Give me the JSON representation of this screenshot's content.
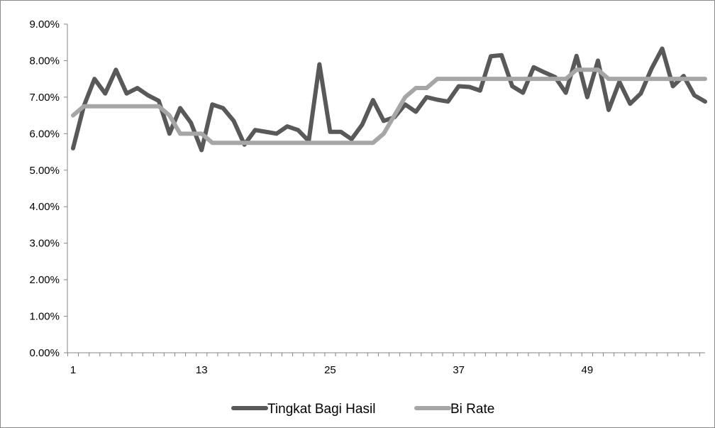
{
  "chart_data": {
    "type": "line",
    "x": [
      1,
      2,
      3,
      4,
      5,
      6,
      7,
      8,
      9,
      10,
      11,
      12,
      13,
      14,
      15,
      16,
      17,
      18,
      19,
      20,
      21,
      22,
      23,
      24,
      25,
      26,
      27,
      28,
      29,
      30,
      31,
      32,
      33,
      34,
      35,
      36,
      37,
      38,
      39,
      40,
      41,
      42,
      43,
      44,
      45,
      46,
      47,
      48,
      49,
      50,
      51,
      52,
      53,
      54,
      55,
      56,
      57,
      58,
      59,
      60
    ],
    "x_ticks": [
      1,
      13,
      25,
      37,
      49
    ],
    "x_tick_labels": [
      "1",
      "13",
      "25",
      "37",
      "49"
    ],
    "ylim": [
      0,
      9
    ],
    "y_ticks": [
      0,
      1,
      2,
      3,
      4,
      5,
      6,
      7,
      8,
      9
    ],
    "y_tick_labels": [
      "0.00%",
      "1.00%",
      "2.00%",
      "3.00%",
      "4.00%",
      "5.00%",
      "6.00%",
      "7.00%",
      "8.00%",
      "9.00%"
    ],
    "y_unit": "percent",
    "grid": false,
    "legend_position": "bottom",
    "series": [
      {
        "name": "Tingkat Bagi Hasil",
        "color": "#595959",
        "values": [
          5.6,
          6.75,
          7.5,
          7.1,
          7.75,
          7.1,
          7.25,
          7.05,
          6.9,
          6.0,
          6.7,
          6.3,
          5.55,
          6.8,
          6.7,
          6.35,
          5.7,
          6.1,
          6.05,
          6.0,
          6.2,
          6.1,
          5.8,
          7.9,
          6.05,
          6.05,
          5.85,
          6.25,
          6.92,
          6.35,
          6.45,
          6.8,
          6.6,
          7.0,
          6.93,
          6.88,
          7.3,
          7.28,
          7.18,
          8.12,
          8.15,
          7.3,
          7.12,
          7.82,
          7.68,
          7.55,
          7.12,
          8.13,
          7.0,
          8.0,
          6.65,
          7.42,
          6.82,
          7.1,
          7.78,
          8.33,
          7.3,
          7.58,
          7.05,
          6.88
        ]
      },
      {
        "name": "Bi Rate",
        "color": "#a6a6a6",
        "values": [
          6.5,
          6.75,
          6.75,
          6.75,
          6.75,
          6.75,
          6.75,
          6.75,
          6.75,
          6.5,
          6.0,
          6.0,
          6.0,
          5.75,
          5.75,
          5.75,
          5.75,
          5.75,
          5.75,
          5.75,
          5.75,
          5.75,
          5.75,
          5.75,
          5.75,
          5.75,
          5.75,
          5.75,
          5.75,
          6.0,
          6.5,
          7.0,
          7.25,
          7.25,
          7.5,
          7.5,
          7.5,
          7.5,
          7.5,
          7.5,
          7.5,
          7.5,
          7.5,
          7.5,
          7.5,
          7.5,
          7.5,
          7.75,
          7.75,
          7.75,
          7.5,
          7.5,
          7.5,
          7.5,
          7.5,
          7.5,
          7.5,
          7.5,
          7.5,
          7.5
        ]
      }
    ]
  }
}
